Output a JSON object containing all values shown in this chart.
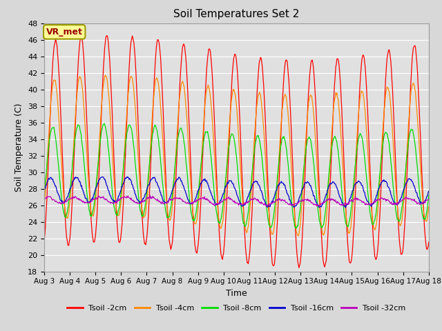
{
  "title": "Soil Temperatures Set 2",
  "xlabel": "Time",
  "ylabel": "Soil Temperature (C)",
  "ylim": [
    18,
    48
  ],
  "yticks": [
    18,
    20,
    22,
    24,
    26,
    28,
    30,
    32,
    34,
    36,
    38,
    40,
    42,
    44,
    46,
    48
  ],
  "x_tick_labels": [
    "Aug 3",
    "Aug 4",
    "Aug 5",
    "Aug 6",
    "Aug 7",
    "Aug 8",
    "Aug 9",
    "Aug 10",
    "Aug 11",
    "Aug 12",
    "Aug 13",
    "Aug 14",
    "Aug 15",
    "Aug 16",
    "Aug 17",
    "Aug 18"
  ],
  "fig_bg_color": "#d8d8d8",
  "plot_bg_color": "#e0e0e0",
  "grid_color": "#ffffff",
  "series_colors": [
    "#ff0000",
    "#ff8800",
    "#00dd00",
    "#0000cc",
    "#bb00bb"
  ],
  "series_labels": [
    "Tsoil -2cm",
    "Tsoil -4cm",
    "Tsoil -8cm",
    "Tsoil -16cm",
    "Tsoil -32cm"
  ],
  "annotation_text": "VR_met",
  "annotation_bg": "#ffff99",
  "annotation_border": "#999900",
  "annotation_text_color": "#990000",
  "title_fontsize": 11,
  "axis_label_fontsize": 9,
  "tick_fontsize": 8,
  "legend_fontsize": 8
}
